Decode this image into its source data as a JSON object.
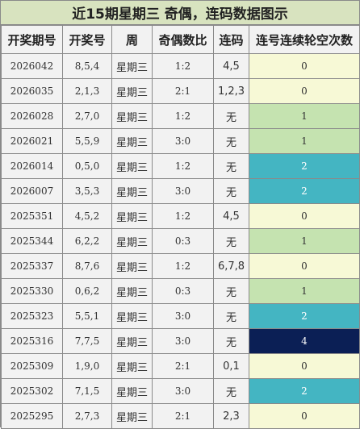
{
  "title": "近15期星期三 奇偶，连码数据图示",
  "headers": [
    "开奖期号",
    "开奖号",
    "周",
    "奇偶数比",
    "连码",
    "连号连续轮空次数"
  ],
  "colors": {
    "title_bg": "#d8e3bf",
    "header_bg": "#f2f2f2",
    "row_bg": "#f2f2f2",
    "count_0": "#f7f9d6",
    "count_1": "#c5e3b0",
    "count_2": "#44b5c2",
    "count_4": "#0b1f55"
  },
  "rows": [
    {
      "issue": "2026042",
      "numbers": "8,5,4",
      "weekday": "星期三",
      "ratio": "1:2",
      "consecutive": "4,5",
      "gap": 0
    },
    {
      "issue": "2026035",
      "numbers": "2,1,3",
      "weekday": "星期三",
      "ratio": "2:1",
      "consecutive": "1,2,3",
      "gap": 0
    },
    {
      "issue": "2026028",
      "numbers": "2,7,0",
      "weekday": "星期三",
      "ratio": "1:2",
      "consecutive": "无",
      "gap": 1
    },
    {
      "issue": "2026021",
      "numbers": "5,5,9",
      "weekday": "星期三",
      "ratio": "3:0",
      "consecutive": "无",
      "gap": 1
    },
    {
      "issue": "2026014",
      "numbers": "0,5,0",
      "weekday": "星期三",
      "ratio": "1:2",
      "consecutive": "无",
      "gap": 2
    },
    {
      "issue": "2026007",
      "numbers": "3,5,3",
      "weekday": "星期三",
      "ratio": "3:0",
      "consecutive": "无",
      "gap": 2
    },
    {
      "issue": "2025351",
      "numbers": "4,5,2",
      "weekday": "星期三",
      "ratio": "1:2",
      "consecutive": "4,5",
      "gap": 0
    },
    {
      "issue": "2025344",
      "numbers": "6,2,2",
      "weekday": "星期三",
      "ratio": "0:3",
      "consecutive": "无",
      "gap": 1
    },
    {
      "issue": "2025337",
      "numbers": "8,7,6",
      "weekday": "星期三",
      "ratio": "1:2",
      "consecutive": "6,7,8",
      "gap": 0
    },
    {
      "issue": "2025330",
      "numbers": "0,6,2",
      "weekday": "星期三",
      "ratio": "0:3",
      "consecutive": "无",
      "gap": 1
    },
    {
      "issue": "2025323",
      "numbers": "5,5,1",
      "weekday": "星期三",
      "ratio": "3:0",
      "consecutive": "无",
      "gap": 2
    },
    {
      "issue": "2025316",
      "numbers": "7,7,5",
      "weekday": "星期三",
      "ratio": "3:0",
      "consecutive": "无",
      "gap": 4
    },
    {
      "issue": "2025309",
      "numbers": "1,9,0",
      "weekday": "星期三",
      "ratio": "2:1",
      "consecutive": "0,1",
      "gap": 0
    },
    {
      "issue": "2025302",
      "numbers": "7,1,5",
      "weekday": "星期三",
      "ratio": "3:0",
      "consecutive": "无",
      "gap": 2
    },
    {
      "issue": "2025295",
      "numbers": "2,7,3",
      "weekday": "星期三",
      "ratio": "2:1",
      "consecutive": "2,3",
      "gap": 0
    }
  ]
}
